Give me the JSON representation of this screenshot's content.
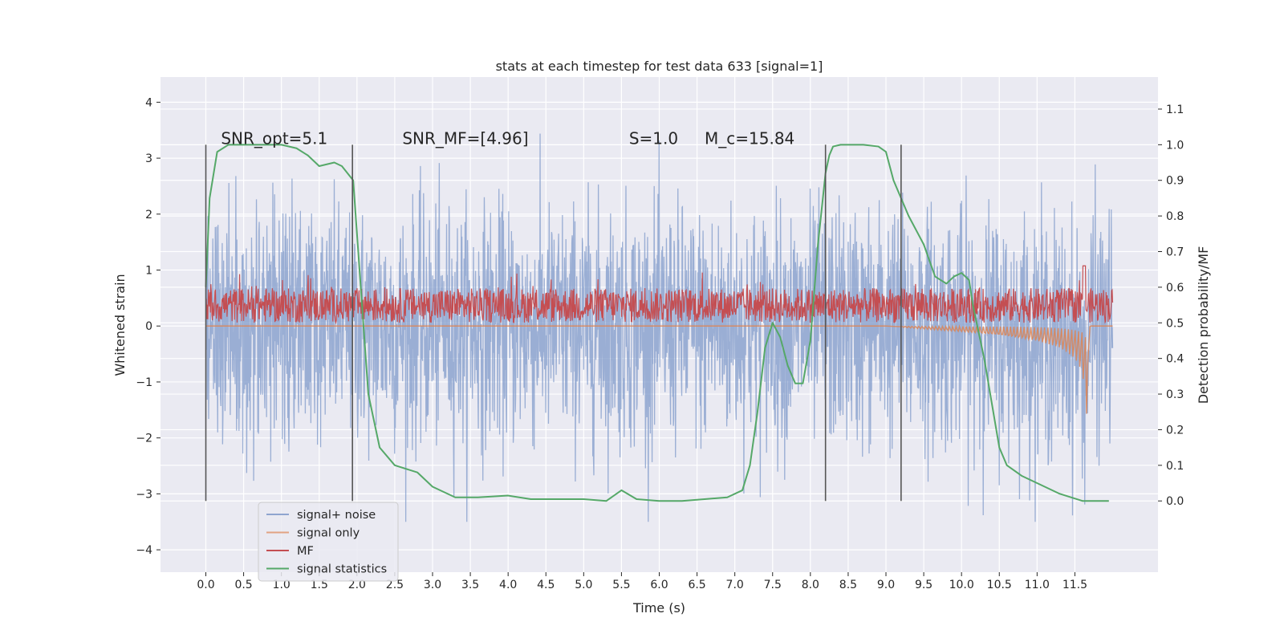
{
  "chart_data": {
    "type": "line",
    "title": "stats at each timestep for test data 633 [signal=1]",
    "xlabel": "Time (s)",
    "ylabel_left": "Whitened strain",
    "ylabel_right": "Detection probability/MF",
    "xlim": [
      -0.6,
      12.6
    ],
    "ylim_left": [
      -4.4,
      4.45
    ],
    "ylim_right": [
      -0.2,
      1.19
    ],
    "x_ticks": [
      0.0,
      0.5,
      1.0,
      1.5,
      2.0,
      2.5,
      3.0,
      3.5,
      4.0,
      4.5,
      5.0,
      5.5,
      6.0,
      6.5,
      7.0,
      7.5,
      8.0,
      8.5,
      9.0,
      9.5,
      10.0,
      10.5,
      11.0,
      11.5
    ],
    "x_tick_labels": [
      "0.0",
      "0.5",
      "1.0",
      "1.5",
      "2.0",
      "2.5",
      "3.0",
      "3.5",
      "4.0",
      "4.5",
      "5.0",
      "5.5",
      "6.0",
      "6.5",
      "7.0",
      "7.5",
      "8.0",
      "8.5",
      "9.0",
      "9.5",
      "10.0",
      "10.5",
      "11.0",
      "11.5"
    ],
    "y_left_ticks": [
      4,
      3,
      2,
      1,
      0,
      -1,
      -2,
      -3,
      -4
    ],
    "y_left_tick_labels": [
      "4",
      "3",
      "2",
      "1",
      "0",
      "−1",
      "−2",
      "−3",
      "−4"
    ],
    "y_right_ticks": [
      1.1,
      1.0,
      0.9,
      0.8,
      0.7,
      0.6,
      0.5,
      0.4,
      0.3,
      0.2,
      0.1,
      0.0
    ],
    "y_right_tick_labels": [
      "1.1",
      "1.0",
      "0.9",
      "0.8",
      "0.7",
      "0.6",
      "0.5",
      "0.4",
      "0.3",
      "0.2",
      "0.1",
      "0.0"
    ],
    "grid": true,
    "legend_position": "lower-left",
    "annotations": [
      {
        "text": "SNR_opt=5.1",
        "x": 0.2,
        "y_right": 1.0
      },
      {
        "text": "SNR_MF=[4.96]",
        "x": 2.6,
        "y_right": 1.0
      },
      {
        "text": "S=1.0",
        "x": 5.6,
        "y_right": 1.0
      },
      {
        "text": "M_c=15.84",
        "x": 6.6,
        "y_right": 1.0
      }
    ],
    "vertical_markers": [
      {
        "x": 0.0,
        "y_right": [
          0.0,
          1.0
        ]
      },
      {
        "x": 1.94,
        "y_right": [
          0.0,
          1.0
        ]
      },
      {
        "x": 8.2,
        "y_right": [
          0.0,
          1.0
        ]
      },
      {
        "x": 9.2,
        "y_right": [
          0.0,
          1.0
        ]
      }
    ],
    "series": [
      {
        "name": "signal+ noise",
        "axis": "left",
        "color": "#7f99c9",
        "x_range": [
          0.0,
          12.0
        ],
        "approx_envelope": [
          -3.5,
          4.1
        ]
      },
      {
        "name": "signal only",
        "axis": "left",
        "color": "#dd8452",
        "x": [
          0.0,
          9.0,
          9.5,
          10.0,
          10.5,
          11.0,
          11.3,
          11.5,
          11.6,
          11.66,
          11.7,
          12.0
        ],
        "y": [
          0.0,
          0.0,
          -0.03,
          -0.06,
          -0.1,
          -0.16,
          -0.22,
          -0.32,
          -0.45,
          -0.9,
          0.0,
          0.0
        ]
      },
      {
        "name": "MF",
        "axis": "right",
        "color": "#c44e52",
        "x_range": [
          0.0,
          12.0
        ],
        "approx_band": [
          0.5,
          0.63
        ]
      },
      {
        "name": "signal statistics",
        "axis": "right",
        "color": "#55a868",
        "x": [
          0.0,
          0.05,
          0.15,
          0.3,
          0.5,
          1.0,
          1.2,
          1.35,
          1.5,
          1.7,
          1.8,
          1.95,
          2.05,
          2.15,
          2.3,
          2.5,
          2.8,
          3.0,
          3.3,
          3.6,
          4.0,
          4.3,
          4.6,
          5.0,
          5.3,
          5.5,
          5.7,
          6.0,
          6.3,
          6.6,
          6.9,
          7.1,
          7.2,
          7.3,
          7.4,
          7.5,
          7.6,
          7.7,
          7.8,
          7.9,
          8.0,
          8.1,
          8.2,
          8.25,
          8.3,
          8.4,
          8.5,
          8.7,
          8.9,
          9.0,
          9.1,
          9.3,
          9.5,
          9.65,
          9.8,
          9.9,
          10.0,
          10.1,
          10.15,
          10.3,
          10.5,
          10.6,
          10.8,
          11.0,
          11.3,
          11.6,
          11.95
        ],
        "y": [
          0.6,
          0.85,
          0.98,
          1.0,
          1.0,
          1.0,
          0.99,
          0.97,
          0.94,
          0.95,
          0.94,
          0.9,
          0.6,
          0.3,
          0.15,
          0.1,
          0.08,
          0.04,
          0.01,
          0.01,
          0.015,
          0.005,
          0.005,
          0.005,
          0.0,
          0.03,
          0.005,
          0.0,
          0.0,
          0.005,
          0.01,
          0.03,
          0.1,
          0.25,
          0.43,
          0.5,
          0.46,
          0.38,
          0.33,
          0.33,
          0.45,
          0.72,
          0.92,
          0.97,
          0.995,
          1.0,
          1.0,
          1.0,
          0.995,
          0.98,
          0.9,
          0.8,
          0.72,
          0.63,
          0.61,
          0.63,
          0.64,
          0.62,
          0.55,
          0.4,
          0.15,
          0.1,
          0.07,
          0.05,
          0.02,
          0.0,
          0.0
        ]
      }
    ]
  }
}
